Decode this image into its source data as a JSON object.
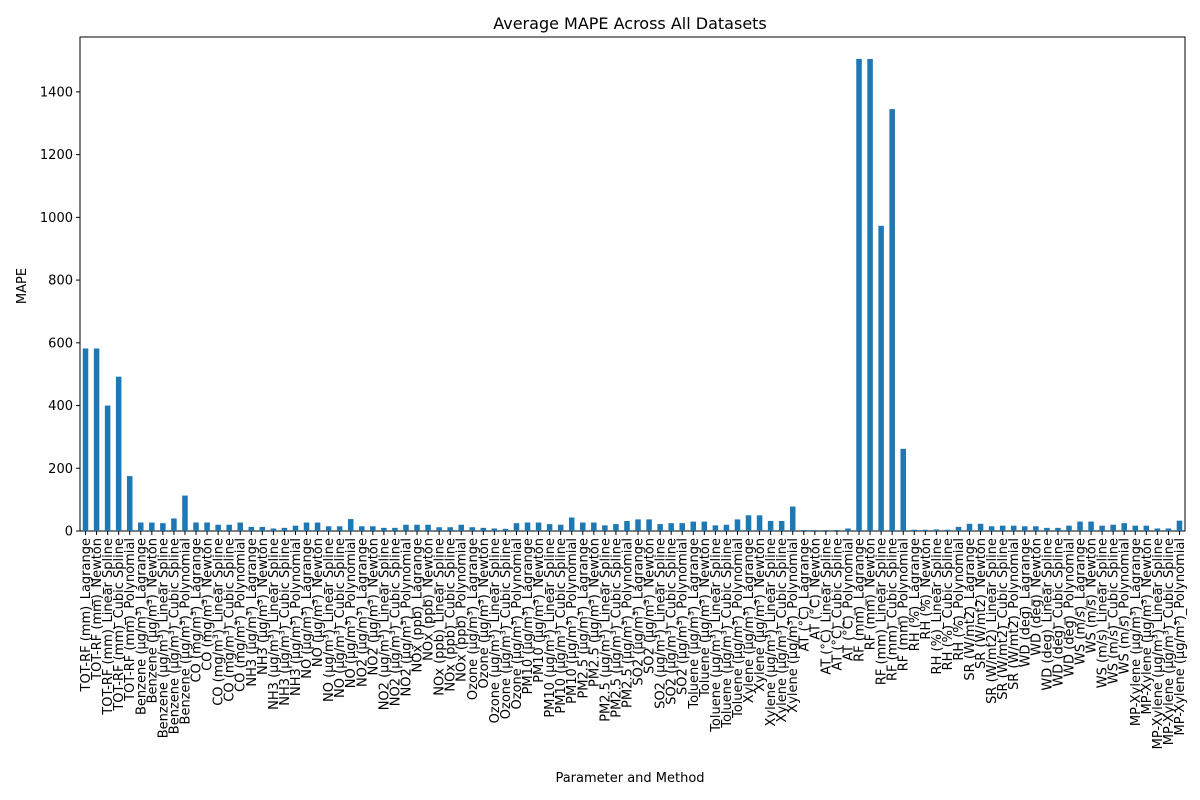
{
  "chart_data": {
    "type": "bar",
    "title": "Average MAPE Across All Datasets",
    "xlabel": "Parameter and Method",
    "ylabel": "MAPE",
    "ylim": [
      0,
      1575
    ],
    "yticks": [
      0,
      200,
      400,
      600,
      800,
      1000,
      1200,
      1400
    ],
    "grid": false,
    "legend": "none",
    "bar_color": "#1f77b4",
    "categories": [
      "TOT-RF (mm)_Lagrange",
      "TOT-RF (mm)_Newton",
      "TOT-RF (mm)_Linear Spline",
      "TOT-RF (mm)_Cubic Spline",
      "TOT-RF (mm)_Polynomial",
      "Benzene (µg/m³)_Lagrange",
      "Benzene (µg/m³)_Newton",
      "Benzene (µg/m³)_Linear Spline",
      "Benzene (µg/m³)_Cubic Spline",
      "Benzene (µg/m³)_Polynomial",
      "CO (mg/m³)_Lagrange",
      "CO (mg/m³)_Newton",
      "CO (mg/m³)_Linear Spline",
      "CO (mg/m³)_Cubic Spline",
      "CO (mg/m³)_Polynomial",
      "NH3 (µg/m³)_Lagrange",
      "NH3 (µg/m³)_Newton",
      "NH3 (µg/m³)_Linear Spline",
      "NH3 (µg/m³)_Cubic Spline",
      "NH3 (µg/m³)_Polynomial",
      "NO (µg/m³)_Lagrange",
      "NO (µg/m³)_Newton",
      "NO (µg/m³)_Linear Spline",
      "NO (µg/m³)_Cubic Spline",
      "NO (µg/m³)_Polynomial",
      "NO2 (µg/m³)_Lagrange",
      "NO2 (µg/m³)_Newton",
      "NO2 (µg/m³)_Linear Spline",
      "NO2 (µg/m³)_Cubic Spline",
      "NO2 (µg/m³)_Polynomial",
      "NOx (ppb)_Lagrange",
      "NOx (ppb)_Newton",
      "NOx (ppb)_Linear Spline",
      "NOx (ppb)_Cubic Spline",
      "NOx (ppb)_Polynomial",
      "Ozone (µg/m³)_Lagrange",
      "Ozone (µg/m³)_Newton",
      "Ozone (µg/m³)_Linear Spline",
      "Ozone (µg/m³)_Cubic Spline",
      "Ozone (µg/m³)_Polynomial",
      "PM10 (µg/m³)_Lagrange",
      "PM10 (µg/m³)_Newton",
      "PM10 (µg/m³)_Linear Spline",
      "PM10 (µg/m³)_Cubic Spline",
      "PM10 (µg/m³)_Polynomial",
      "PM2.5 (µg/m³)_Lagrange",
      "PM2.5 (µg/m³)_Newton",
      "PM2.5 (µg/m³)_Linear Spline",
      "PM2.5 (µg/m³)_Cubic Spline",
      "PM2.5 (µg/m³)_Polynomial",
      "SO2 (µg/m³)_Lagrange",
      "SO2 (µg/m³)_Newton",
      "SO2 (µg/m³)_Linear Spline",
      "SO2 (µg/m³)_Cubic Spline",
      "SO2 (µg/m³)_Polynomial",
      "Toluene (µg/m³)_Lagrange",
      "Toluene (µg/m³)_Newton",
      "Toluene (µg/m³)_Linear Spline",
      "Toluene (µg/m³)_Cubic Spline",
      "Toluene (µg/m³)_Polynomial",
      "Xylene (µg/m³)_Lagrange",
      "Xylene (µg/m³)_Newton",
      "Xylene (µg/m³)_Linear Spline",
      "Xylene (µg/m³)_Cubic Spline",
      "Xylene (µg/m³)_Polynomial",
      "AT (°C)_Lagrange",
      "AT (°C)_Newton",
      "AT (°C)_Linear Spline",
      "AT (°C)_Cubic Spline",
      "AT (°C)_Polynomial",
      "RF (mm)_Lagrange",
      "RF (mm)_Newton",
      "RF (mm)_Linear Spline",
      "RF (mm)_Cubic Spline",
      "RF (mm)_Polynomial",
      "RH (%)_Lagrange",
      "RH (%)_Newton",
      "RH (%)_Linear Spline",
      "RH (%)_Cubic Spline",
      "RH (%)_Polynomial",
      "SR (W/mt2)_Lagrange",
      "SR (W/mt2)_Newton",
      "SR (W/mt2)_Linear Spline",
      "SR (W/mt2)_Cubic Spline",
      "SR (W/mt2)_Polynomial",
      "WD (deg)_Lagrange",
      "WD (deg)_Newton",
      "WD (deg)_Linear Spline",
      "WD (deg)_Cubic Spline",
      "WD (deg)_Polynomial",
      "WS (m/s)_Lagrange",
      "WS (m/s)_Newton",
      "WS (m/s)_Linear Spline",
      "WS (m/s)_Cubic Spline",
      "WS (m/s)_Polynomial",
      "MP-Xylene (µg/m³)_Lagrange",
      "MP-Xylene (µg/m³)_Newton",
      "MP-Xylene (µg/m³)_Linear Spline",
      "MP-Xylene (µg/m³)_Cubic Spline",
      "MP-Xylene (µg/m³)_Polynomial"
    ],
    "values": [
      582,
      582,
      400,
      492,
      175,
      27,
      27,
      25,
      40,
      113,
      27,
      27,
      20,
      20,
      27,
      13,
      13,
      8,
      10,
      17,
      27,
      27,
      15,
      15,
      38,
      15,
      15,
      10,
      10,
      20,
      20,
      20,
      12,
      12,
      20,
      12,
      10,
      8,
      7,
      25,
      27,
      27,
      22,
      20,
      43,
      27,
      27,
      18,
      22,
      32,
      37,
      37,
      22,
      25,
      25,
      30,
      30,
      18,
      20,
      37,
      50,
      50,
      32,
      32,
      78,
      3,
      3,
      3,
      3,
      8,
      1505,
      1505,
      973,
      1345,
      262,
      4,
      4,
      5,
      4,
      13,
      23,
      23,
      15,
      17,
      17,
      15,
      15,
      10,
      10,
      17,
      30,
      30,
      17,
      20,
      25,
      17,
      17,
      8,
      8,
      33
    ]
  }
}
